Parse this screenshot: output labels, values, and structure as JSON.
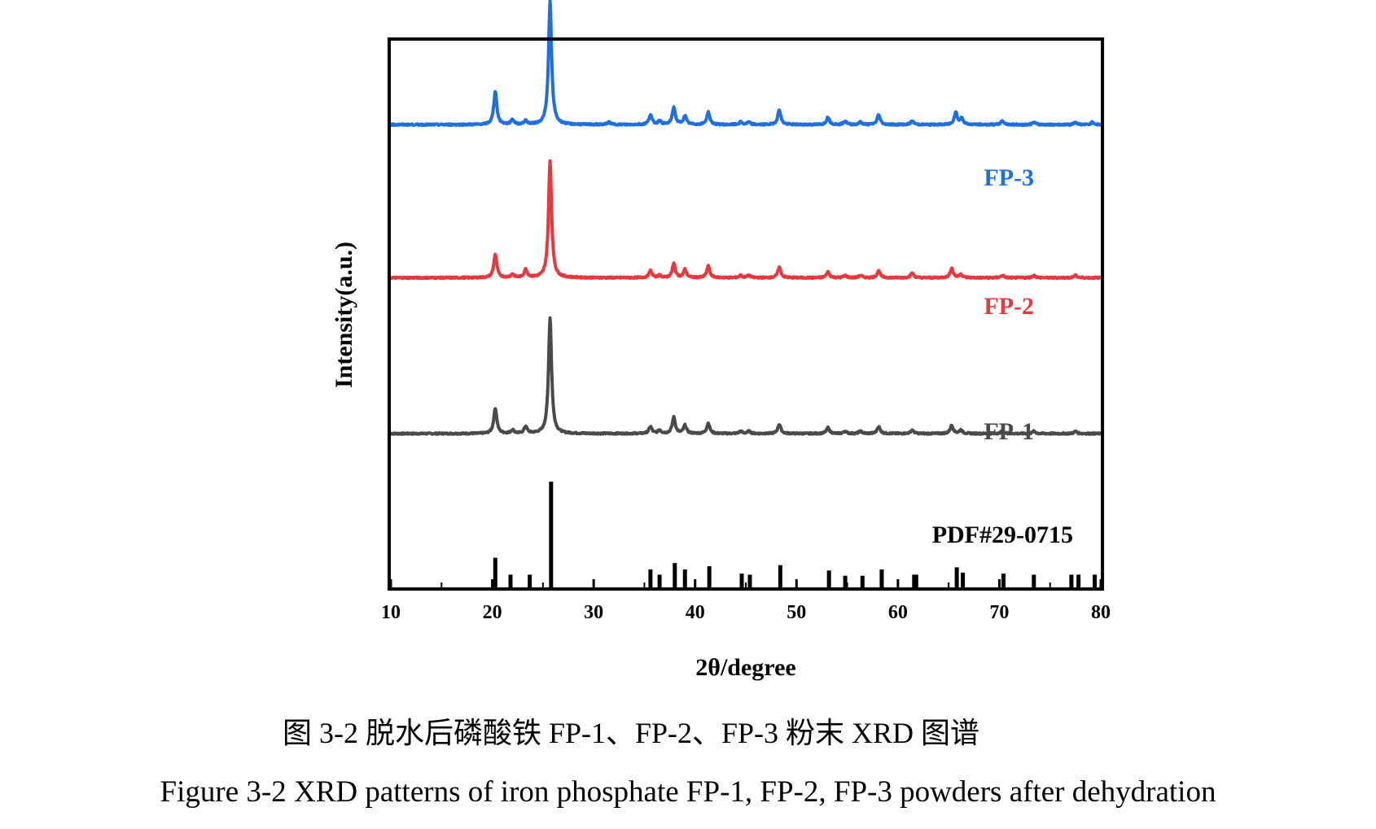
{
  "chart_data": {
    "type": "line",
    "xlabel": "2θ/degree",
    "ylabel": "Intensity(a.u.)",
    "xlim": [
      10,
      80
    ],
    "xticks": [
      10,
      20,
      30,
      40,
      50,
      60,
      70,
      80
    ],
    "grid": false,
    "y_tick_labels": false,
    "baseline": 0.03,
    "series": [
      {
        "name": "FP-1",
        "color": "#4a4a4a",
        "offset": 0.28,
        "scale": 0.92,
        "peaks": [
          [
            20.3,
            0.22
          ],
          [
            22.0,
            0.03
          ],
          [
            23.3,
            0.06
          ],
          [
            25.7,
            1.0
          ],
          [
            35.6,
            0.06
          ],
          [
            36.5,
            0.03
          ],
          [
            37.9,
            0.14
          ],
          [
            39.0,
            0.07
          ],
          [
            41.3,
            0.09
          ],
          [
            44.5,
            0.02
          ],
          [
            45.3,
            0.02
          ],
          [
            48.3,
            0.08
          ],
          [
            53.1,
            0.05
          ],
          [
            54.8,
            0.02
          ],
          [
            56.3,
            0.02
          ],
          [
            58.1,
            0.06
          ],
          [
            61.4,
            0.03
          ],
          [
            65.3,
            0.07
          ],
          [
            66.2,
            0.03
          ],
          [
            70.3,
            0.02
          ],
          [
            73.4,
            0.02
          ],
          [
            77.5,
            0.02
          ]
        ]
      },
      {
        "name": "FP-2",
        "color": "#e8383d",
        "offset": 0.565,
        "scale": 0.93,
        "peaks": [
          [
            20.3,
            0.2
          ],
          [
            22.0,
            0.03
          ],
          [
            23.3,
            0.07
          ],
          [
            25.7,
            1.0
          ],
          [
            35.6,
            0.06
          ],
          [
            36.5,
            0.02
          ],
          [
            37.9,
            0.12
          ],
          [
            39.0,
            0.07
          ],
          [
            41.3,
            0.1
          ],
          [
            44.5,
            0.02
          ],
          [
            45.3,
            0.02
          ],
          [
            48.3,
            0.09
          ],
          [
            53.1,
            0.05
          ],
          [
            54.8,
            0.02
          ],
          [
            56.3,
            0.02
          ],
          [
            58.1,
            0.06
          ],
          [
            61.4,
            0.04
          ],
          [
            65.3,
            0.08
          ],
          [
            66.2,
            0.03
          ],
          [
            70.3,
            0.02
          ],
          [
            73.4,
            0.02
          ],
          [
            77.5,
            0.02
          ]
        ]
      },
      {
        "name": "FP-3",
        "color": "#1f6fe0",
        "offset": 0.845,
        "scale": 0.98,
        "peaks": [
          [
            20.3,
            0.27
          ],
          [
            22.0,
            0.04
          ],
          [
            23.3,
            0.03
          ],
          [
            25.7,
            1.0
          ],
          [
            31.5,
            0.02
          ],
          [
            35.6,
            0.08
          ],
          [
            36.5,
            0.03
          ],
          [
            37.9,
            0.14
          ],
          [
            39.0,
            0.07
          ],
          [
            41.3,
            0.1
          ],
          [
            44.5,
            0.02
          ],
          [
            45.3,
            0.02
          ],
          [
            48.3,
            0.12
          ],
          [
            53.1,
            0.06
          ],
          [
            54.8,
            0.03
          ],
          [
            56.3,
            0.02
          ],
          [
            58.1,
            0.08
          ],
          [
            61.4,
            0.03
          ],
          [
            65.7,
            0.1
          ],
          [
            66.3,
            0.05
          ],
          [
            70.3,
            0.03
          ],
          [
            73.4,
            0.02
          ],
          [
            77.5,
            0.02
          ],
          [
            79.2,
            0.02
          ]
        ]
      }
    ],
    "reference": {
      "name": "PDF#29-0715",
      "color": "#000000",
      "lines": [
        [
          20.3,
          0.28
        ],
        [
          21.8,
          0.12
        ],
        [
          23.7,
          0.12
        ],
        [
          25.8,
          1.0
        ],
        [
          35.6,
          0.17
        ],
        [
          36.5,
          0.12
        ],
        [
          38.0,
          0.23
        ],
        [
          39.0,
          0.17
        ],
        [
          41.4,
          0.2
        ],
        [
          44.6,
          0.13
        ],
        [
          45.4,
          0.12
        ],
        [
          48.4,
          0.21
        ],
        [
          53.2,
          0.16
        ],
        [
          54.8,
          0.11
        ],
        [
          56.5,
          0.11
        ],
        [
          58.4,
          0.17
        ],
        [
          61.6,
          0.12
        ],
        [
          61.8,
          0.12
        ],
        [
          65.8,
          0.19
        ],
        [
          66.4,
          0.14
        ],
        [
          70.4,
          0.13
        ],
        [
          73.4,
          0.12
        ],
        [
          77.1,
          0.12
        ],
        [
          77.8,
          0.12
        ],
        [
          79.4,
          0.12
        ]
      ]
    }
  },
  "caption": {
    "cn": "图 3-2  脱水后磷酸铁 FP-1、FP-2、FP-3 粉末 XRD 图谱",
    "en": "Figure 3-2 XRD patterns of iron phosphate FP-1, FP-2, FP-3 powders after dehydration"
  }
}
